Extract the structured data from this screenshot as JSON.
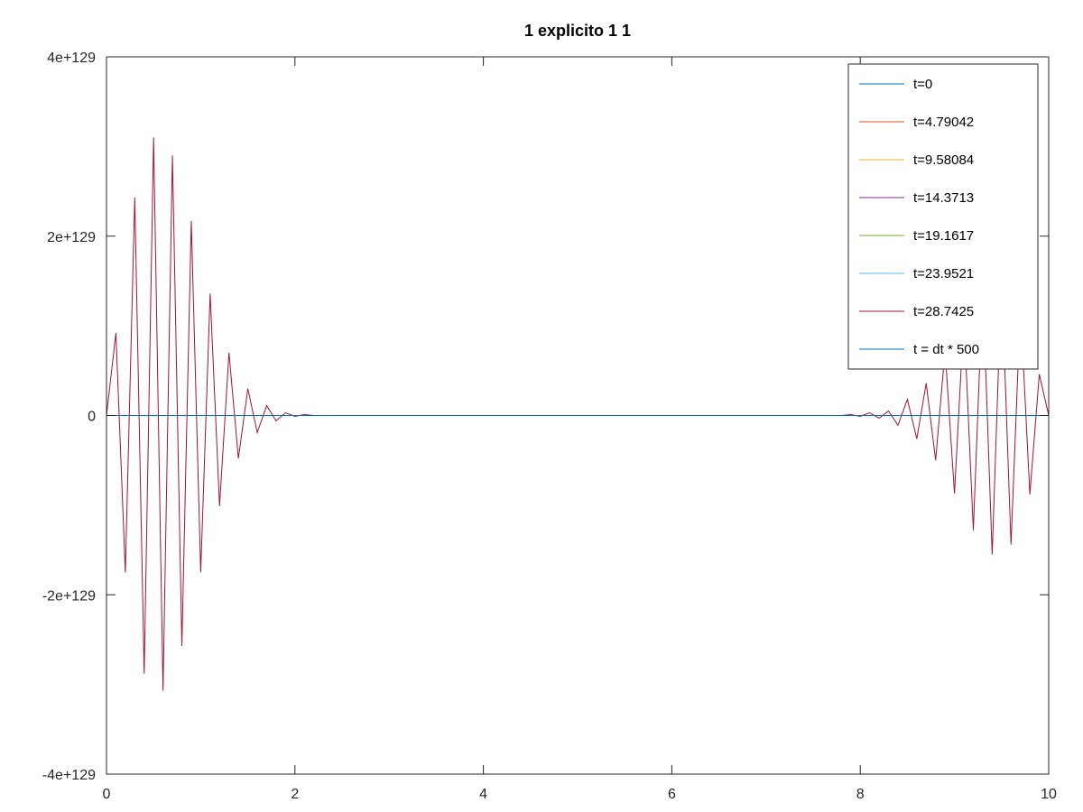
{
  "chart_data": {
    "type": "line",
    "title": "1 explicito 1 1",
    "xlabel": "",
    "ylabel": "",
    "xlim": [
      0,
      10
    ],
    "ylim": [
      -4e+129,
      4e+129
    ],
    "x_ticks": [
      "0",
      "2",
      "4",
      "6",
      "8",
      "10"
    ],
    "y_ticks": [
      "-4e+129",
      "-2e+129",
      "0",
      "2e+129",
      "4e+129"
    ],
    "legend_position": "top-right",
    "grid": false,
    "x": [
      0,
      0.1,
      0.2,
      0.3,
      0.4,
      0.5,
      0.6,
      0.7,
      0.8,
      0.9,
      1.0,
      1.1,
      1.2,
      1.3,
      1.4,
      1.5,
      1.6,
      1.7,
      1.8,
      1.9,
      2.0,
      2.1,
      2.2,
      7.8,
      7.9,
      8.0,
      8.1,
      8.2,
      8.3,
      8.4,
      8.5,
      8.6,
      8.7,
      8.8,
      8.9,
      9.0,
      9.1,
      9.2,
      9.3,
      9.4,
      9.5,
      9.6,
      9.7,
      9.8,
      9.9,
      10.0
    ],
    "series": [
      {
        "name": "t=0",
        "color": "#0072bd",
        "values": [
          0,
          0,
          0,
          0,
          0,
          0,
          0,
          0,
          0,
          0,
          0,
          0,
          0,
          0,
          0,
          0,
          0,
          0,
          0,
          0,
          0,
          0,
          0,
          0,
          0,
          0,
          0,
          0,
          0,
          0,
          0,
          0,
          0,
          0,
          0,
          0,
          0,
          0,
          0,
          0,
          0,
          0,
          0,
          0,
          0,
          0
        ]
      },
      {
        "name": "t=4.79042",
        "color": "#d95319",
        "values": [
          0,
          0,
          0,
          0,
          0,
          0,
          0,
          0,
          0,
          0,
          0,
          0,
          0,
          0,
          0,
          0,
          0,
          0,
          0,
          0,
          0,
          0,
          0,
          0,
          0,
          0,
          0,
          0,
          0,
          0,
          0,
          0,
          0,
          0,
          0,
          0,
          0,
          0,
          0,
          0,
          0,
          0,
          0,
          0,
          0,
          0
        ]
      },
      {
        "name": "t=9.58084",
        "color": "#edb120",
        "values": [
          0,
          0,
          0,
          0,
          0,
          0,
          0,
          0,
          0,
          0,
          0,
          0,
          0,
          0,
          0,
          0,
          0,
          0,
          0,
          0,
          0,
          0,
          0,
          0,
          0,
          0,
          0,
          0,
          0,
          0,
          0,
          0,
          0,
          0,
          0,
          0,
          0,
          0,
          0,
          0,
          0,
          0,
          0,
          0,
          0,
          0
        ]
      },
      {
        "name": "t=14.3713",
        "color": "#7e2f8e",
        "values": [
          0,
          0,
          0,
          0,
          0,
          0,
          0,
          0,
          0,
          0,
          0,
          0,
          0,
          0,
          0,
          0,
          0,
          0,
          0,
          0,
          0,
          0,
          0,
          0,
          0,
          0,
          0,
          0,
          0,
          0,
          0,
          0,
          0,
          0,
          0,
          0,
          0,
          0,
          0,
          0,
          0,
          0,
          0,
          0,
          0,
          0
        ]
      },
      {
        "name": "t=19.1617",
        "color": "#77ac30",
        "values": [
          0,
          0,
          0,
          0,
          0,
          0,
          0,
          0,
          0,
          0,
          0,
          0,
          0,
          0,
          0,
          0,
          0,
          0,
          0,
          0,
          0,
          0,
          0,
          0,
          0,
          0,
          0,
          0,
          0,
          0,
          0,
          0,
          0,
          0,
          0,
          0,
          0,
          0,
          0,
          0,
          0,
          0,
          0,
          0,
          0,
          0
        ]
      },
      {
        "name": "t=23.9521",
        "color": "#4dbeee",
        "values": [
          0,
          0,
          0,
          0,
          0,
          0,
          0,
          0,
          0,
          0,
          0,
          0,
          0,
          0,
          0,
          0,
          0,
          0,
          0,
          0,
          0,
          0,
          0,
          0,
          0,
          0,
          0,
          0,
          0,
          0,
          0,
          0,
          0,
          0,
          0,
          0,
          0,
          0,
          0,
          0,
          0,
          0,
          0,
          0,
          0,
          0
        ]
      },
      {
        "name": "t=28.7425",
        "color": "#a2142f",
        "values": [
          0,
          9.2e+128,
          -1.75e+129,
          2.43e+129,
          -2.88e+129,
          3.1e+129,
          -3.07e+129,
          2.9e+129,
          -2.57e+129,
          2.17e+129,
          -1.75e+129,
          1.36e+129,
          -1.01e+129,
          7e+128,
          -4.8e+128,
          3e+128,
          -1.9e+128,
          1.1e+128,
          -6e+127,
          3e+127,
          -1e+127,
          1e+127,
          0,
          0,
          1e+127,
          -1e+127,
          3e+127,
          -3e+127,
          5e+127,
          -1.1e+128,
          1.8e+128,
          -2.6e+128,
          3.6e+128,
          -5e+128,
          7.3e+128,
          -8.7e+128,
          1.1e+129,
          -1.28e+129,
          1.45e+129,
          -1.55e+129,
          1.55e+129,
          -1.44e+129,
          1.22e+129,
          -8.8e+128,
          4.6e+128,
          0
        ]
      },
      {
        "name": "t = dt * 500",
        "color": "#0072bd",
        "values": [
          0,
          0,
          0,
          0,
          0,
          0,
          0,
          0,
          0,
          0,
          0,
          0,
          0,
          0,
          0,
          0,
          0,
          0,
          0,
          0,
          0,
          0,
          0,
          0,
          0,
          0,
          0,
          0,
          0,
          0,
          0,
          0,
          0,
          0,
          0,
          0,
          0,
          0,
          0,
          0,
          0,
          0,
          0,
          0,
          0,
          0
        ]
      }
    ]
  }
}
